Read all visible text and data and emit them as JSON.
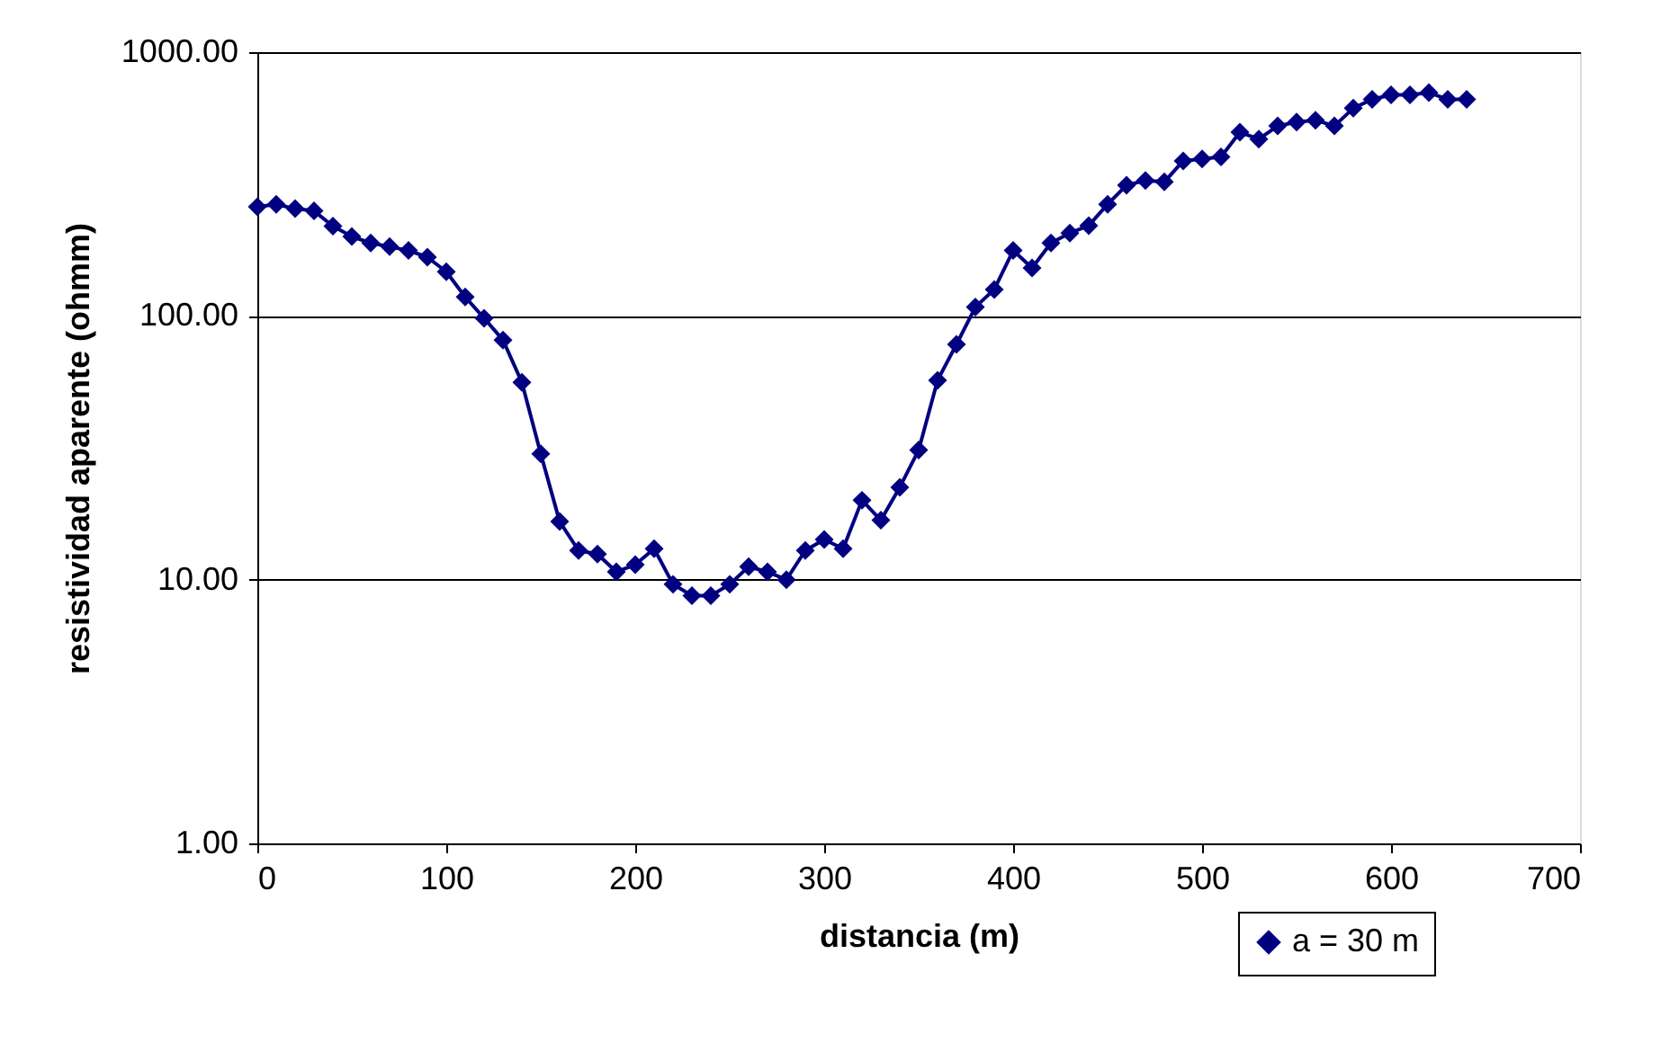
{
  "chart_data": {
    "type": "line",
    "xlabel": "distancia (m)",
    "ylabel": "resistividad aparente (ohmm)",
    "x": [
      0,
      10,
      20,
      30,
      40,
      50,
      60,
      70,
      80,
      90,
      100,
      110,
      120,
      130,
      140,
      150,
      160,
      170,
      180,
      190,
      200,
      210,
      220,
      230,
      240,
      250,
      260,
      270,
      280,
      290,
      300,
      310,
      320,
      330,
      340,
      350,
      360,
      370,
      380,
      390,
      400,
      410,
      420,
      430,
      440,
      450,
      460,
      470,
      480,
      490,
      500,
      510,
      520,
      530,
      540,
      550,
      560,
      570,
      580,
      590,
      600,
      610,
      620,
      630,
      640
    ],
    "series": [
      {
        "name": "a = 30 m",
        "color": "#000080",
        "values": [
          259,
          265,
          255,
          250,
          219,
          200,
          189,
          183,
          177,
          167,
          147,
          118,
          98,
          81,
          56,
          30,
          16.6,
          12.9,
          12.5,
          10.7,
          11.4,
          13.1,
          9.6,
          8.7,
          8.7,
          9.6,
          11.2,
          10.7,
          10.0,
          12.9,
          14.2,
          13.1,
          20,
          16.8,
          22.4,
          31,
          57,
          78,
          108,
          126,
          177,
          152,
          189,
          206,
          220,
          265,
          313,
          326,
          322,
          387,
          394,
          401,
          497,
          468,
          525,
          543,
          552,
          525,
          613,
          662,
          689,
          689,
          703,
          662,
          662
        ]
      }
    ],
    "xlim": [
      0,
      700
    ],
    "xticks": [
      0,
      100,
      200,
      300,
      400,
      500,
      600,
      700
    ],
    "ylim": [
      1,
      1000
    ],
    "yticks": [
      {
        "value": 1,
        "label": "1.00"
      },
      {
        "value": 10,
        "label": "10.00"
      },
      {
        "value": 100,
        "label": "100.00"
      },
      {
        "value": 1000,
        "label": "1000.00"
      }
    ],
    "log": "y",
    "grid": "y",
    "legend": "bottom right",
    "marker": "diamond",
    "line_style": "solid"
  }
}
